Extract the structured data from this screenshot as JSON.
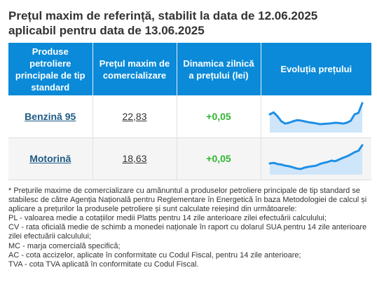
{
  "page": {
    "title_line1": "Prețul maxim de referință, stabilit la data de 12.06.2025",
    "title_line2": "aplicabil pentru data de 13.06.2025"
  },
  "table": {
    "headers": [
      "Produse petroliere principale de tip standard",
      "Prețul maxim de comercializare",
      "Dinamica zilnică a prețului (lei)",
      "Evoluția prețului"
    ],
    "rows": [
      {
        "product": "Benzină 95",
        "price": "22,83",
        "change": "+0,05"
      },
      {
        "product": "Motorină",
        "price": "18,63",
        "change": "+0,05"
      }
    ]
  },
  "colors": {
    "header_bg": "#0a8ad8",
    "link": "#1f5a85",
    "positive": "#2fb52f",
    "spark_line": "#1e8fe6",
    "spark_fill": "#cfe6fa"
  },
  "sparklines": [
    {
      "icon": "sparkline-chart",
      "values": [
        0.55,
        0.62,
        0.48,
        0.3,
        0.22,
        0.25,
        0.3,
        0.34,
        0.33,
        0.3,
        0.27,
        0.25,
        0.23,
        0.2,
        0.21,
        0.22,
        0.23,
        0.25,
        0.24,
        0.22,
        0.25,
        0.32,
        0.55,
        0.6,
        0.95
      ]
    },
    {
      "icon": "sparkline-chart",
      "values": [
        0.3,
        0.32,
        0.28,
        0.26,
        0.22,
        0.2,
        0.16,
        0.12,
        0.1,
        0.15,
        0.18,
        0.2,
        0.22,
        0.28,
        0.32,
        0.35,
        0.4,
        0.38,
        0.44,
        0.5,
        0.55,
        0.62,
        0.7,
        0.75,
        0.95
      ]
    }
  ],
  "notes": [
    "* Prețurile maxime de comercializare cu amănuntul a produselor petroliere principale de tip standard se stabilesc de către Agenția Națională pentru Reglementare în Energetică în baza Metodologiei de calcul și aplicare a prețurilor la produsele petroliere și sunt calculate reieșind din următoarele:",
    "PL - valoarea medie a cotațiilor medii Platts pentru 14 zile anterioare zilei efectuării calculului;",
    "CV - rata oficială medie de schimb a monedei naționale în raport cu dolarul SUA pentru 14 zile anterioare zilei efectuării calculului;",
    "MC - marja comercială specifică;",
    "AC - cota accizelor, aplicate în conformitate cu Codul Fiscal, pentru 14 zile anterioare;",
    "TVA - cota TVA aplicată în conformitate cu Codul Fiscal."
  ]
}
